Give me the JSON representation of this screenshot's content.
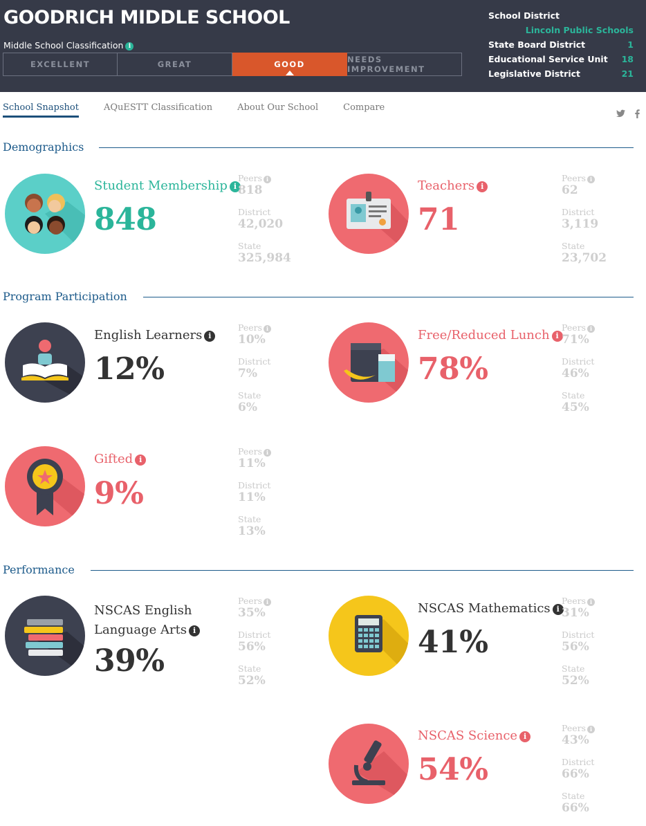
{
  "header": {
    "school_name": "GOODRICH MIDDLE SCHOOL",
    "classification_label": "Middle School Classification",
    "ratings": [
      "EXCELLENT",
      "GREAT",
      "GOOD",
      "NEEDS IMPROVEMENT"
    ],
    "active_rating": "GOOD",
    "district": {
      "school_district_label": "School District",
      "school_district_value": "Lincoln Public Schools",
      "state_board_label": "State Board District",
      "state_board_value": "1",
      "esu_label": "Educational Service Unit",
      "esu_value": "18",
      "legislative_label": "Legislative District",
      "legislative_value": "21"
    }
  },
  "tabs": [
    "School Snapshot",
    "AQuESTT Classification",
    "About Our School",
    "Compare"
  ],
  "social": {
    "twitter": "t",
    "facebook": "f"
  },
  "sections": {
    "demographics": "Demographics",
    "program": "Program Participation",
    "performance": "Performance"
  },
  "compare_labels": {
    "peers": "Peers",
    "district": "District",
    "state": "State"
  },
  "stats": {
    "student_membership": {
      "label": "Student Membership",
      "value": "848",
      "peers": "818",
      "district": "42,020",
      "state": "325,984"
    },
    "teachers": {
      "label": "Teachers",
      "value": "71",
      "peers": "62",
      "district": "3,119",
      "state": "23,702"
    },
    "english_learners": {
      "label": "English Learners",
      "value": "12%",
      "peers": "10%",
      "district": "7%",
      "state": "6%"
    },
    "free_reduced_lunch": {
      "label": "Free/Reduced Lunch",
      "value": "78%",
      "peers": "71%",
      "district": "46%",
      "state": "45%"
    },
    "gifted": {
      "label": "Gifted",
      "value": "9%",
      "peers": "11%",
      "district": "11%",
      "state": "13%"
    },
    "nscas_ela": {
      "label_line1": "NSCAS English",
      "label_line2": "Language Arts",
      "value": "39%",
      "peers": "35%",
      "district": "56%",
      "state": "52%"
    },
    "nscas_math": {
      "label": "NSCAS Mathematics",
      "value": "41%",
      "peers": "31%",
      "district": "56%",
      "state": "52%"
    },
    "nscas_science": {
      "label": "NSCAS Science",
      "value": "54%",
      "peers": "43%",
      "district": "66%",
      "state": "66%"
    }
  },
  "colors": {
    "header_bg": "#363a48",
    "teal": "#2bb59a",
    "red": "#e8616a",
    "orange_active": "#d9572b",
    "navy": "#1c5a8a",
    "dark_circle": "#3d4150",
    "yellow": "#f5c61b"
  }
}
